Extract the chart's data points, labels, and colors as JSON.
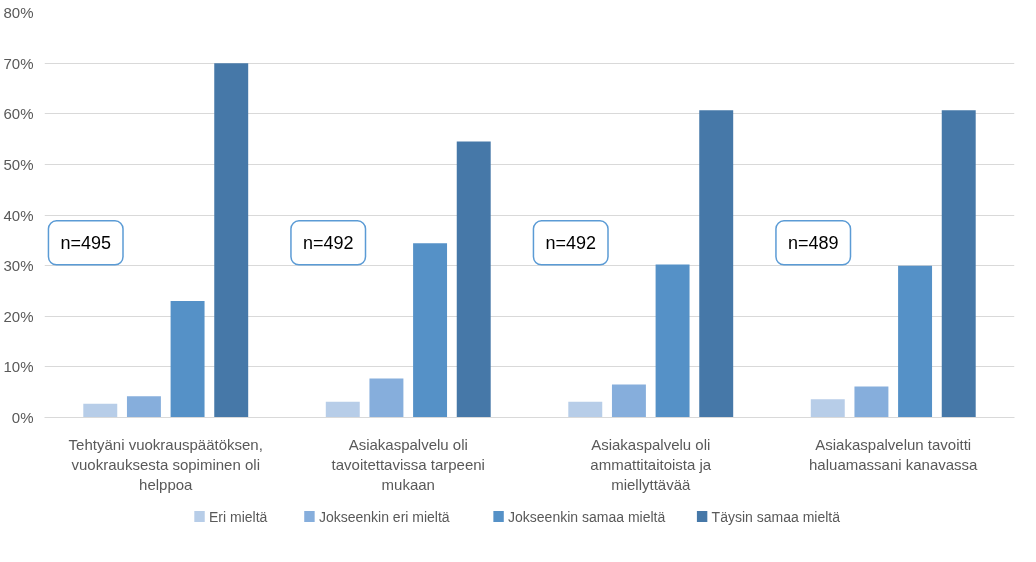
{
  "chart_data": {
    "type": "bar",
    "categories": [
      "Tehtyäni vuokrauspäätöksen, vuokrauksesta sopiminen oli helppoa",
      "Asiakaspalvelu oli tavoitettavissa tarpeeni mukaan",
      "Asiakaspalvelu oli ammattitaitoista ja miellyttävää",
      "Asiakaspalvelun tavoitti haluamassani kanavassa"
    ],
    "series": [
      {
        "name": "Eri mieltä",
        "color": "#b7cde8",
        "values": [
          2.7,
          3.1,
          3.1,
          3.6
        ]
      },
      {
        "name": "Jokseenkin eri mieltä",
        "color": "#86aedc",
        "values": [
          4.2,
          7.7,
          6.5,
          6.1
        ]
      },
      {
        "name": "Jokseenkin samaa mieltä",
        "color": "#5591c7",
        "values": [
          23.0,
          34.4,
          30.2,
          30.0
        ]
      },
      {
        "name": "Täysin samaa mieltä",
        "color": "#4678a8",
        "values": [
          70.0,
          54.5,
          60.7,
          60.7
        ]
      }
    ],
    "ylim": [
      0,
      80
    ],
    "yticks": [
      {
        "value": 0,
        "label": "0%"
      },
      {
        "value": 10,
        "label": "10%"
      },
      {
        "value": 20,
        "label": "20%"
      },
      {
        "value": 30,
        "label": "30%"
      },
      {
        "value": 40,
        "label": "40%"
      },
      {
        "value": 50,
        "label": "50%"
      },
      {
        "value": 60,
        "label": "60%"
      },
      {
        "value": 70,
        "label": "70%"
      },
      {
        "value": 80,
        "label": "80%"
      }
    ],
    "annotations": [
      "n=495",
      "n=492",
      "n=492",
      "n=489"
    ],
    "grid": "y",
    "legend": "bottom"
  }
}
